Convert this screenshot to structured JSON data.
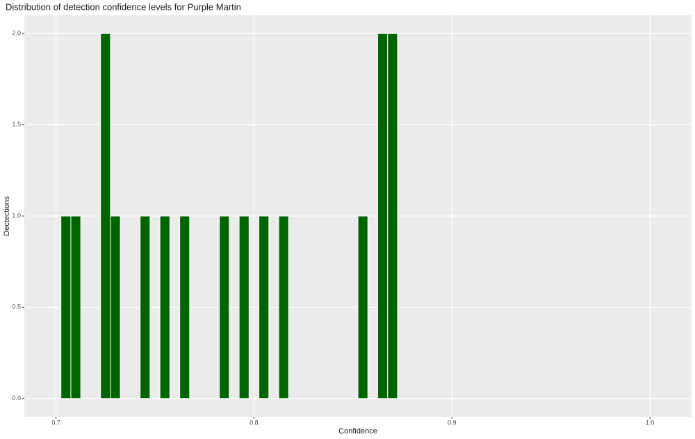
{
  "chart_data": {
    "type": "histogram",
    "title": "Distribution of detection confidence levels for Purple Martin",
    "x_label": "Confidence",
    "y_label": "Dectections",
    "color": "#006400",
    "bins": [
      0.7025,
      0.7075,
      0.7125,
      0.7175,
      0.7225,
      0.7275,
      0.7325,
      0.7375,
      0.7425,
      0.7475,
      0.7525,
      0.7575,
      0.7625,
      0.7675,
      0.7725,
      0.7775,
      0.7825,
      0.7875,
      0.7925,
      0.7975,
      0.8025,
      0.8075,
      0.8125,
      0.8175,
      0.8225,
      0.8275,
      0.8325,
      0.8375,
      0.8425,
      0.8475,
      0.8525,
      0.8575,
      0.8625,
      0.8675,
      0.8725
    ],
    "values": [
      1,
      1,
      0,
      0,
      2,
      1,
      0,
      0,
      1,
      0,
      1,
      0,
      1,
      0,
      0,
      0,
      1,
      0,
      1,
      0,
      1,
      0,
      1,
      0,
      0,
      0,
      0,
      0,
      0,
      0,
      1,
      0,
      2,
      2
    ],
    "xlim": [
      0.684,
      1.021
    ],
    "ylim": [
      -0.1,
      2.1
    ],
    "xticks": [
      0.7,
      0.8,
      0.9,
      {
        "value": 1.0,
        "label": "1.0"
      }
    ],
    "yticks": [
      {
        "value": 0,
        "label": "0.0"
      },
      0.5,
      {
        "value": 1,
        "label": "1.0"
      },
      1.5,
      {
        "value": 2,
        "label": "2.0"
      }
    ],
    "grid": true
  }
}
